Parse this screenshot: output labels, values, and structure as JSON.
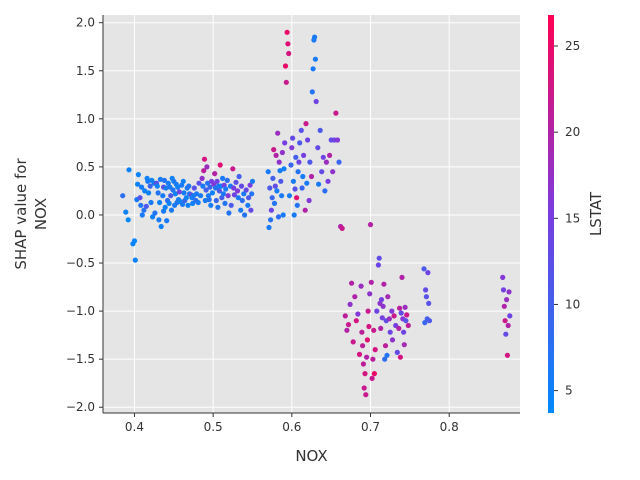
{
  "chart_data": {
    "type": "scatter",
    "title": "",
    "xlabel": "NOX",
    "ylabel_lines": [
      "SHAP value for",
      "NOX"
    ],
    "xlim": [
      0.36,
      0.89
    ],
    "ylim": [
      -2.06,
      2.08
    ],
    "xticks": [
      0.4,
      0.5,
      0.6,
      0.7,
      0.8
    ],
    "xtick_labels": [
      "0.4",
      "0.5",
      "0.6",
      "0.7",
      "0.8"
    ],
    "yticks": [
      2.0,
      1.5,
      1.0,
      0.5,
      0.0,
      -0.5,
      -1.0,
      -1.5,
      -2.0
    ],
    "ytick_labels": [
      "2.0",
      "1.5",
      "1.0",
      "0.5",
      "0.0",
      "−0.5",
      "−1.0",
      "−1.5",
      "−2.0"
    ],
    "grid": true,
    "background_color": "#e5e5e5",
    "grid_color": "#ffffff",
    "color_by": {
      "label": "LSTAT",
      "min": 3.7,
      "max": 26.8,
      "ticks": [
        5,
        10,
        15,
        20,
        25
      ],
      "tick_labels": [
        "5",
        "10",
        "15",
        "20",
        "25"
      ],
      "colors": [
        "#008afb",
        "#7a3ce0",
        "#ff0052"
      ]
    },
    "points": [
      [
        0.385,
        0.2,
        8
      ],
      [
        0.389,
        0.03,
        5
      ],
      [
        0.392,
        -0.05,
        4
      ],
      [
        0.393,
        0.47,
        5
      ],
      [
        0.398,
        -0.3,
        5
      ],
      [
        0.4,
        -0.27,
        4
      ],
      [
        0.401,
        -0.47,
        5
      ],
      [
        0.403,
        0.16,
        6
      ],
      [
        0.404,
        0.32,
        5
      ],
      [
        0.405,
        0.42,
        5
      ],
      [
        0.407,
        0.18,
        12
      ],
      [
        0.408,
        0.1,
        7
      ],
      [
        0.409,
        0.29,
        6
      ],
      [
        0.41,
        0.0,
        6
      ],
      [
        0.412,
        0.05,
        7
      ],
      [
        0.413,
        0.25,
        5
      ],
      [
        0.415,
        0.09,
        11
      ],
      [
        0.416,
        0.38,
        5
      ],
      [
        0.417,
        0.35,
        6
      ],
      [
        0.418,
        0.23,
        5
      ],
      [
        0.42,
        0.3,
        9
      ],
      [
        0.421,
        0.13,
        6
      ],
      [
        0.422,
        0.36,
        5
      ],
      [
        0.423,
        -0.02,
        5
      ],
      [
        0.425,
        0.33,
        6
      ],
      [
        0.426,
        0.02,
        7
      ],
      [
        0.428,
        0.33,
        12
      ],
      [
        0.429,
        0.3,
        5
      ],
      [
        0.43,
        0.23,
        7
      ],
      [
        0.431,
        -0.05,
        6
      ],
      [
        0.432,
        0.13,
        5
      ],
      [
        0.433,
        0.37,
        6
      ],
      [
        0.434,
        -0.12,
        5
      ],
      [
        0.436,
        0.2,
        6
      ],
      [
        0.437,
        0.04,
        6
      ],
      [
        0.437,
        0.29,
        13
      ],
      [
        0.438,
        0.36,
        7
      ],
      [
        0.439,
        0.08,
        5
      ],
      [
        0.44,
        0.28,
        6
      ],
      [
        0.441,
        -0.06,
        6
      ],
      [
        0.442,
        0.15,
        8
      ],
      [
        0.443,
        0.33,
        6
      ],
      [
        0.444,
        0.12,
        5
      ],
      [
        0.445,
        0.29,
        6
      ],
      [
        0.446,
        0.2,
        11
      ],
      [
        0.447,
        0.05,
        6
      ],
      [
        0.448,
        0.38,
        5
      ],
      [
        0.449,
        0.26,
        7
      ],
      [
        0.45,
        0.35,
        6
      ],
      [
        0.451,
        0.1,
        6
      ],
      [
        0.452,
        0.22,
        5
      ],
      [
        0.453,
        0.32,
        6
      ],
      [
        0.454,
        0.13,
        7
      ],
      [
        0.455,
        0.29,
        5
      ],
      [
        0.456,
        0.16,
        6
      ],
      [
        0.457,
        0.24,
        14
      ],
      [
        0.458,
        0.14,
        5
      ],
      [
        0.46,
        0.31,
        6
      ],
      [
        0.461,
        0.11,
        6
      ],
      [
        0.462,
        0.35,
        5
      ],
      [
        0.463,
        0.23,
        6
      ],
      [
        0.464,
        0.15,
        9
      ],
      [
        0.466,
        0.18,
        5
      ],
      [
        0.467,
        0.28,
        6
      ],
      [
        0.468,
        0.1,
        5
      ],
      [
        0.469,
        0.3,
        7
      ],
      [
        0.47,
        0.22,
        6
      ],
      [
        0.472,
        0.21,
        13
      ],
      [
        0.473,
        0.18,
        6
      ],
      [
        0.474,
        0.12,
        5
      ],
      [
        0.475,
        0.2,
        6
      ],
      [
        0.476,
        0.28,
        12
      ],
      [
        0.478,
        0.15,
        8
      ],
      [
        0.479,
        0.22,
        6
      ],
      [
        0.481,
        0.13,
        6
      ],
      [
        0.482,
        0.33,
        12
      ],
      [
        0.484,
        0.2,
        6
      ],
      [
        0.486,
        0.38,
        17
      ],
      [
        0.487,
        0.3,
        6
      ],
      [
        0.488,
        0.46,
        21
      ],
      [
        0.489,
        0.58,
        23
      ],
      [
        0.49,
        0.15,
        6
      ],
      [
        0.491,
        0.26,
        10
      ],
      [
        0.492,
        0.5,
        18
      ],
      [
        0.493,
        0.33,
        7
      ],
      [
        0.494,
        0.2,
        6
      ],
      [
        0.495,
        0.16,
        7
      ],
      [
        0.496,
        0.29,
        9
      ],
      [
        0.497,
        0.1,
        6
      ],
      [
        0.498,
        0.35,
        15
      ],
      [
        0.499,
        0.23,
        5
      ],
      [
        0.501,
        0.32,
        16
      ],
      [
        0.502,
        0.43,
        20
      ],
      [
        0.503,
        0.28,
        7
      ],
      [
        0.504,
        0.15,
        9
      ],
      [
        0.505,
        0.35,
        14
      ],
      [
        0.506,
        0.08,
        7
      ],
      [
        0.507,
        0.3,
        6
      ],
      [
        0.508,
        0.25,
        11
      ],
      [
        0.509,
        0.52,
        24
      ],
      [
        0.51,
        0.3,
        5
      ],
      [
        0.511,
        0.18,
        10
      ],
      [
        0.512,
        0.38,
        6
      ],
      [
        0.513,
        0.22,
        6
      ],
      [
        0.514,
        0.31,
        15
      ],
      [
        0.515,
        0.12,
        7
      ],
      [
        0.516,
        0.27,
        6
      ],
      [
        0.518,
        0.36,
        8
      ],
      [
        0.519,
        0.2,
        16
      ],
      [
        0.52,
        0.02,
        7
      ],
      [
        0.522,
        0.3,
        6
      ],
      [
        0.523,
        0.1,
        11
      ],
      [
        0.525,
        0.48,
        22
      ],
      [
        0.526,
        0.28,
        15
      ],
      [
        0.527,
        0.21,
        14
      ],
      [
        0.529,
        0.34,
        12
      ],
      [
        0.531,
        0.25,
        16
      ],
      [
        0.532,
        0.18,
        6
      ],
      [
        0.533,
        0.4,
        10
      ],
      [
        0.535,
        0.05,
        6
      ],
      [
        0.536,
        0.3,
        13
      ],
      [
        0.537,
        0.15,
        8
      ],
      [
        0.539,
        0.22,
        6
      ],
      [
        0.54,
        0.0,
        7
      ],
      [
        0.542,
        0.26,
        13
      ],
      [
        0.544,
        0.1,
        6
      ],
      [
        0.545,
        0.18,
        11
      ],
      [
        0.547,
        0.31,
        15
      ],
      [
        0.548,
        0.05,
        13
      ],
      [
        0.549,
        0.22,
        7
      ],
      [
        0.55,
        0.35,
        6
      ],
      [
        0.57,
        0.45,
        6
      ],
      [
        0.571,
        -0.13,
        6
      ],
      [
        0.572,
        0.28,
        11
      ],
      [
        0.573,
        -0.05,
        7
      ],
      [
        0.574,
        0.05,
        14
      ],
      [
        0.575,
        0.18,
        9
      ],
      [
        0.576,
        0.38,
        10
      ],
      [
        0.577,
        0.68,
        22
      ],
      [
        0.578,
        0.12,
        7
      ],
      [
        0.579,
        0.3,
        13
      ],
      [
        0.58,
        0.62,
        20
      ],
      [
        0.581,
        0.25,
        6
      ],
      [
        0.582,
        0.85,
        18
      ],
      [
        0.583,
        -0.02,
        8
      ],
      [
        0.584,
        0.55,
        17
      ],
      [
        0.585,
        0.46,
        6
      ],
      [
        0.586,
        0.35,
        11
      ],
      [
        0.587,
        0.2,
        6
      ],
      [
        0.588,
        0.65,
        17
      ],
      [
        0.589,
        0.0,
        6
      ],
      [
        0.59,
        0.48,
        5
      ],
      [
        0.591,
        0.75,
        15
      ],
      [
        0.592,
        1.55,
        25
      ],
      [
        0.593,
        1.38,
        22
      ],
      [
        0.594,
        1.9,
        25
      ],
      [
        0.595,
        1.78,
        24
      ],
      [
        0.596,
        1.68,
        23
      ],
      [
        0.597,
        0.2,
        6
      ],
      [
        0.599,
        0.52,
        9
      ],
      [
        0.6,
        0.7,
        16
      ],
      [
        0.601,
        0.8,
        13
      ],
      [
        0.602,
        0.35,
        6
      ],
      [
        0.603,
        0.0,
        6
      ],
      [
        0.604,
        0.27,
        12
      ],
      [
        0.605,
        0.6,
        10
      ],
      [
        0.606,
        0.18,
        24
      ],
      [
        0.607,
        0.1,
        7
      ],
      [
        0.608,
        0.45,
        7
      ],
      [
        0.609,
        0.55,
        14
      ],
      [
        0.61,
        0.75,
        11
      ],
      [
        0.612,
        0.88,
        12
      ],
      [
        0.613,
        0.28,
        9
      ],
      [
        0.614,
        0.4,
        6
      ],
      [
        0.615,
        0.62,
        15
      ],
      [
        0.617,
        0.05,
        20
      ],
      [
        0.618,
        0.95,
        22
      ],
      [
        0.619,
        0.33,
        6
      ],
      [
        0.62,
        0.78,
        14
      ],
      [
        0.622,
        0.15,
        16
      ],
      [
        0.623,
        0.55,
        11
      ],
      [
        0.625,
        0.4,
        20
      ],
      [
        0.626,
        1.28,
        7
      ],
      [
        0.627,
        1.52,
        6
      ],
      [
        0.628,
        1.82,
        6
      ],
      [
        0.629,
        1.85,
        6
      ],
      [
        0.63,
        1.62,
        6
      ],
      [
        0.631,
        1.18,
        14
      ],
      [
        0.633,
        0.7,
        13
      ],
      [
        0.634,
        0.32,
        6
      ],
      [
        0.636,
        0.88,
        11
      ],
      [
        0.638,
        0.45,
        13
      ],
      [
        0.64,
        0.6,
        14
      ],
      [
        0.642,
        0.25,
        8
      ],
      [
        0.644,
        0.55,
        18
      ],
      [
        0.646,
        0.35,
        15
      ],
      [
        0.648,
        0.62,
        20
      ],
      [
        0.65,
        0.78,
        13
      ],
      [
        0.652,
        0.45,
        17
      ],
      [
        0.654,
        0.78,
        14
      ],
      [
        0.656,
        1.06,
        22
      ],
      [
        0.658,
        0.78,
        16
      ],
      [
        0.66,
        0.55,
        9
      ],
      [
        0.662,
        -0.12,
        20
      ],
      [
        0.664,
        -0.14,
        22
      ],
      [
        0.668,
        -1.05,
        21
      ],
      [
        0.67,
        -1.2,
        20
      ],
      [
        0.672,
        -1.14,
        22
      ],
      [
        0.674,
        -0.93,
        17
      ],
      [
        0.676,
        -0.71,
        20
      ],
      [
        0.678,
        -1.32,
        22
      ],
      [
        0.68,
        -0.85,
        20
      ],
      [
        0.682,
        -1.1,
        23
      ],
      [
        0.684,
        -1.03,
        16
      ],
      [
        0.686,
        -1.45,
        23
      ],
      [
        0.688,
        -0.74,
        18
      ],
      [
        0.689,
        -1.22,
        21
      ],
      [
        0.69,
        -1.36,
        21
      ],
      [
        0.691,
        -1.55,
        21
      ],
      [
        0.692,
        -1.8,
        22
      ],
      [
        0.693,
        -1.65,
        23
      ],
      [
        0.694,
        -1.87,
        22
      ],
      [
        0.695,
        -1.48,
        20
      ],
      [
        0.696,
        -1.3,
        24
      ],
      [
        0.697,
        -1.0,
        22
      ],
      [
        0.698,
        -1.16,
        23
      ],
      [
        0.699,
        -0.82,
        17
      ],
      [
        0.7,
        -0.1,
        20
      ],
      [
        0.701,
        -0.7,
        20
      ],
      [
        0.702,
        -1.7,
        22
      ],
      [
        0.703,
        -1.5,
        21
      ],
      [
        0.704,
        -1.2,
        22
      ],
      [
        0.705,
        -1.65,
        25
      ],
      [
        0.706,
        -1.4,
        23
      ],
      [
        0.708,
        -1.0,
        14
      ],
      [
        0.71,
        -0.52,
        14
      ],
      [
        0.711,
        -0.45,
        13
      ],
      [
        0.712,
        -0.92,
        17
      ],
      [
        0.713,
        -1.18,
        20
      ],
      [
        0.714,
        -0.88,
        15
      ],
      [
        0.715,
        -1.07,
        15
      ],
      [
        0.716,
        -0.95,
        17
      ],
      [
        0.717,
        -0.72,
        20
      ],
      [
        0.718,
        -1.5,
        8
      ],
      [
        0.719,
        -1.36,
        21
      ],
      [
        0.72,
        -1.1,
        13
      ],
      [
        0.721,
        -1.46,
        7
      ],
      [
        0.722,
        -0.85,
        19
      ],
      [
        0.724,
        -1.08,
        18
      ],
      [
        0.725,
        -1.22,
        14
      ],
      [
        0.727,
        -1.0,
        16
      ],
      [
        0.728,
        -1.3,
        17
      ],
      [
        0.73,
        -1.05,
        22
      ],
      [
        0.732,
        -1.15,
        15
      ],
      [
        0.734,
        -1.43,
        13
      ],
      [
        0.736,
        -1.18,
        20
      ],
      [
        0.737,
        -0.97,
        21
      ],
      [
        0.738,
        -1.48,
        23
      ],
      [
        0.739,
        -1.02,
        13
      ],
      [
        0.74,
        -0.65,
        20
      ],
      [
        0.741,
        -1.08,
        16
      ],
      [
        0.742,
        -1.22,
        14
      ],
      [
        0.743,
        -1.35,
        19
      ],
      [
        0.744,
        -0.96,
        18
      ],
      [
        0.745,
        -1.1,
        12
      ],
      [
        0.746,
        -1.04,
        22
      ],
      [
        0.748,
        -1.15,
        21
      ],
      [
        0.768,
        -0.56,
        11
      ],
      [
        0.769,
        -1.12,
        9
      ],
      [
        0.77,
        -0.78,
        13
      ],
      [
        0.771,
        -0.85,
        12
      ],
      [
        0.772,
        -1.08,
        10
      ],
      [
        0.773,
        -0.6,
        14
      ],
      [
        0.774,
        -0.92,
        12
      ],
      [
        0.775,
        -1.1,
        11
      ],
      [
        0.868,
        -0.65,
        16
      ],
      [
        0.869,
        -0.78,
        15
      ],
      [
        0.87,
        -0.95,
        20
      ],
      [
        0.871,
        -1.1,
        22
      ],
      [
        0.872,
        -1.24,
        13
      ],
      [
        0.873,
        -0.88,
        18
      ],
      [
        0.874,
        -1.46,
        23
      ],
      [
        0.875,
        -1.15,
        20
      ],
      [
        0.876,
        -0.8,
        17
      ],
      [
        0.877,
        -1.05,
        14
      ]
    ]
  }
}
